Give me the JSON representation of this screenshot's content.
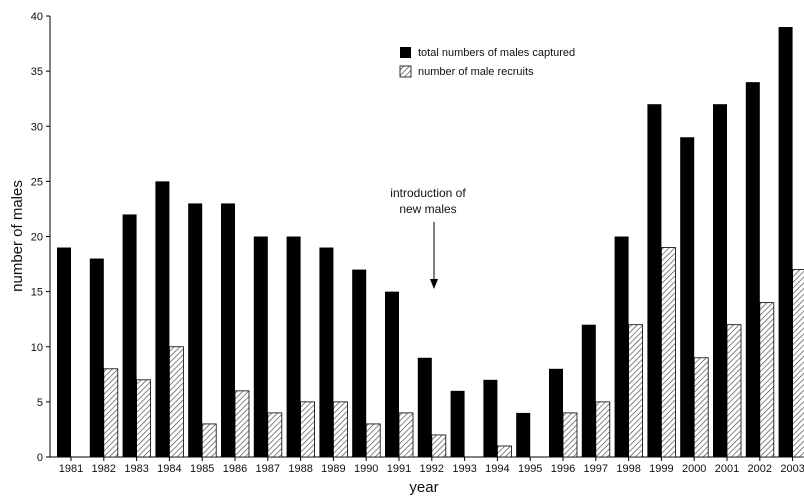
{
  "chart_data": {
    "type": "bar",
    "title": "",
    "xlabel": "year",
    "ylabel": "number of males",
    "ylim": [
      0,
      40
    ],
    "yticks": [
      0,
      5,
      10,
      15,
      20,
      25,
      30,
      35,
      40
    ],
    "grid": false,
    "legend_position": "top-right",
    "categories": [
      "1981",
      "1982",
      "1983",
      "1984",
      "1985",
      "1986",
      "1987",
      "1988",
      "1989",
      "1990",
      "1991",
      "1992",
      "1993",
      "1994",
      "1995",
      "1996",
      "1997",
      "1998",
      "1999",
      "2000",
      "2001",
      "2002",
      "2003"
    ],
    "series": [
      {
        "name": "total numbers of males captured",
        "fill": "solid",
        "color": "#000000",
        "values": [
          19,
          18,
          22,
          25,
          23,
          23,
          20,
          20,
          19,
          17,
          15,
          9,
          6,
          7,
          4,
          8,
          12,
          20,
          32,
          29,
          32,
          34,
          39
        ]
      },
      {
        "name": "number of male recruits",
        "fill": "hatched",
        "color": "#555555",
        "values": [
          0,
          8,
          7,
          10,
          3,
          6,
          4,
          5,
          5,
          3,
          4,
          2,
          0,
          1,
          0,
          4,
          5,
          12,
          19,
          9,
          12,
          14,
          17
        ]
      }
    ],
    "annotations": [
      {
        "lines": [
          "introduction of",
          "new males"
        ],
        "category": "1992",
        "arrow": "down"
      }
    ]
  }
}
